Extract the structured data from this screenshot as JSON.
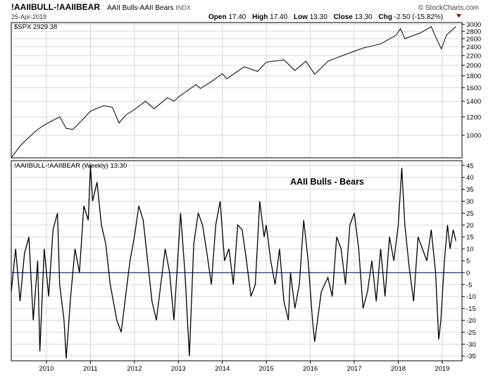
{
  "header": {
    "symbol": "!AAIIBULL-!AAIIBEAR",
    "description": "AAII Bulls-AAII Bears",
    "exchange": "INDX",
    "date": "25-Apr-2019",
    "open_label": "Open",
    "open": "17.40",
    "high_label": "High",
    "high": "17.40",
    "low_label": "Low",
    "low": "13.30",
    "close_label": "Close",
    "close": "13.30",
    "chg_label": "Chg",
    "chg": "-2.50 (-15.82%)",
    "brand": "© StockCharts.com"
  },
  "colors": {
    "line": "#000000",
    "zero_line": "#1f2f7a",
    "grid": "#d9d9d9",
    "border": "#000000",
    "chg_arrow": "#8b0000"
  },
  "chart_data": [
    {
      "type": "line",
      "panel": "top",
      "legend": "$SPX 2929.38",
      "scale": "log",
      "x_start": "2009-03",
      "x_end": "2019-04",
      "ylim": [
        800,
        3050
      ],
      "yticks": [
        1000,
        1200,
        1400,
        1600,
        1800,
        2000,
        2200,
        2400,
        2600,
        2800,
        3000
      ],
      "grid": true,
      "series": [
        {
          "values": [
            [
              2009.2,
              800
            ],
            [
              2009.4,
              900
            ],
            [
              2009.6,
              980
            ],
            [
              2009.8,
              1060
            ],
            [
              2010.0,
              1120
            ],
            [
              2010.3,
              1200
            ],
            [
              2010.45,
              1070
            ],
            [
              2010.6,
              1060
            ],
            [
              2010.85,
              1180
            ],
            [
              2011.0,
              1270
            ],
            [
              2011.3,
              1340
            ],
            [
              2011.5,
              1320
            ],
            [
              2011.65,
              1130
            ],
            [
              2011.8,
              1220
            ],
            [
              2012.0,
              1290
            ],
            [
              2012.25,
              1400
            ],
            [
              2012.45,
              1300
            ],
            [
              2012.75,
              1450
            ],
            [
              2012.9,
              1400
            ],
            [
              2013.0,
              1460
            ],
            [
              2013.4,
              1650
            ],
            [
              2013.5,
              1590
            ],
            [
              2013.75,
              1700
            ],
            [
              2014.0,
              1840
            ],
            [
              2014.1,
              1750
            ],
            [
              2014.5,
              1970
            ],
            [
              2014.8,
              1880
            ],
            [
              2015.0,
              2060
            ],
            [
              2015.4,
              2110
            ],
            [
              2015.65,
              1900
            ],
            [
              2015.9,
              2080
            ],
            [
              2016.1,
              1830
            ],
            [
              2016.4,
              2080
            ],
            [
              2016.65,
              2170
            ],
            [
              2016.9,
              2260
            ],
            [
              2017.2,
              2370
            ],
            [
              2017.6,
              2470
            ],
            [
              2017.95,
              2690
            ],
            [
              2018.05,
              2870
            ],
            [
              2018.15,
              2600
            ],
            [
              2018.5,
              2750
            ],
            [
              2018.75,
              2930
            ],
            [
              2018.85,
              2650
            ],
            [
              2018.98,
              2350
            ],
            [
              2019.1,
              2700
            ],
            [
              2019.31,
              2929
            ]
          ]
        }
      ]
    },
    {
      "type": "line",
      "panel": "bottom",
      "legend": "!AAIIBULL-!AAIIBEAR (Weekly) 13.30",
      "annotation": "AAII Bulls - Bears",
      "x_start": "2009-03",
      "x_end": "2019-04",
      "ylim": [
        -37,
        47
      ],
      "yticks": [
        -35,
        -30,
        -25,
        -20,
        -15,
        -10,
        -5,
        0,
        5,
        10,
        15,
        20,
        25,
        30,
        35,
        40,
        45
      ],
      "reference_line": 0,
      "xticks": [
        "2010",
        "2011",
        "2012",
        "2013",
        "2014",
        "2015",
        "2016",
        "2017",
        "2018",
        "2019"
      ],
      "grid": true,
      "series": [
        {
          "values": [
            [
              2009.2,
              -8
            ],
            [
              2009.3,
              10
            ],
            [
              2009.4,
              -12
            ],
            [
              2009.5,
              8
            ],
            [
              2009.6,
              15
            ],
            [
              2009.7,
              -20
            ],
            [
              2009.8,
              5
            ],
            [
              2009.85,
              -33
            ],
            [
              2009.95,
              10
            ],
            [
              2010.05,
              -10
            ],
            [
              2010.15,
              18
            ],
            [
              2010.25,
              25
            ],
            [
              2010.3,
              -5
            ],
            [
              2010.4,
              -20
            ],
            [
              2010.45,
              -36
            ],
            [
              2010.55,
              -10
            ],
            [
              2010.65,
              10
            ],
            [
              2010.75,
              0
            ],
            [
              2010.85,
              28
            ],
            [
              2010.95,
              22
            ],
            [
              2011.0,
              45
            ],
            [
              2011.05,
              30
            ],
            [
              2011.15,
              38
            ],
            [
              2011.25,
              20
            ],
            [
              2011.35,
              12
            ],
            [
              2011.45,
              -5
            ],
            [
              2011.6,
              -20
            ],
            [
              2011.7,
              -25
            ],
            [
              2011.8,
              -10
            ],
            [
              2011.9,
              5
            ],
            [
              2012.0,
              15
            ],
            [
              2012.1,
              28
            ],
            [
              2012.2,
              22
            ],
            [
              2012.3,
              5
            ],
            [
              2012.4,
              -12
            ],
            [
              2012.5,
              -20
            ],
            [
              2012.6,
              -5
            ],
            [
              2012.7,
              10
            ],
            [
              2012.8,
              0
            ],
            [
              2012.9,
              -20
            ],
            [
              2013.0,
              10
            ],
            [
              2013.05,
              25
            ],
            [
              2013.15,
              0
            ],
            [
              2013.25,
              -35
            ],
            [
              2013.35,
              12
            ],
            [
              2013.45,
              25
            ],
            [
              2013.55,
              20
            ],
            [
              2013.65,
              8
            ],
            [
              2013.75,
              -5
            ],
            [
              2013.85,
              20
            ],
            [
              2013.95,
              30
            ],
            [
              2014.05,
              5
            ],
            [
              2014.15,
              10
            ],
            [
              2014.25,
              -5
            ],
            [
              2014.35,
              20
            ],
            [
              2014.45,
              18
            ],
            [
              2014.55,
              5
            ],
            [
              2014.65,
              -10
            ],
            [
              2014.75,
              -5
            ],
            [
              2014.85,
              30
            ],
            [
              2014.95,
              15
            ],
            [
              2015.0,
              20
            ],
            [
              2015.1,
              5
            ],
            [
              2015.2,
              -5
            ],
            [
              2015.3,
              10
            ],
            [
              2015.4,
              -12
            ],
            [
              2015.5,
              -20
            ],
            [
              2015.55,
              0
            ],
            [
              2015.65,
              -15
            ],
            [
              2015.75,
              -5
            ],
            [
              2015.85,
              22
            ],
            [
              2015.95,
              5
            ],
            [
              2016.05,
              -20
            ],
            [
              2016.1,
              -29
            ],
            [
              2016.25,
              -8
            ],
            [
              2016.4,
              -2
            ],
            [
              2016.5,
              -10
            ],
            [
              2016.6,
              15
            ],
            [
              2016.7,
              10
            ],
            [
              2016.8,
              -5
            ],
            [
              2016.9,
              20
            ],
            [
              2017.0,
              25
            ],
            [
              2017.1,
              10
            ],
            [
              2017.2,
              -15
            ],
            [
              2017.3,
              -8
            ],
            [
              2017.4,
              5
            ],
            [
              2017.5,
              -12
            ],
            [
              2017.6,
              10
            ],
            [
              2017.7,
              -10
            ],
            [
              2017.8,
              15
            ],
            [
              2017.9,
              5
            ],
            [
              2018.0,
              20
            ],
            [
              2018.08,
              44
            ],
            [
              2018.15,
              20
            ],
            [
              2018.25,
              2
            ],
            [
              2018.35,
              -12
            ],
            [
              2018.45,
              15
            ],
            [
              2018.55,
              10
            ],
            [
              2018.65,
              5
            ],
            [
              2018.75,
              18
            ],
            [
              2018.85,
              0
            ],
            [
              2018.92,
              -28
            ],
            [
              2018.97,
              -20
            ],
            [
              2019.05,
              5
            ],
            [
              2019.12,
              20
            ],
            [
              2019.18,
              10
            ],
            [
              2019.25,
              18
            ],
            [
              2019.31,
              13.3
            ]
          ]
        }
      ]
    }
  ]
}
